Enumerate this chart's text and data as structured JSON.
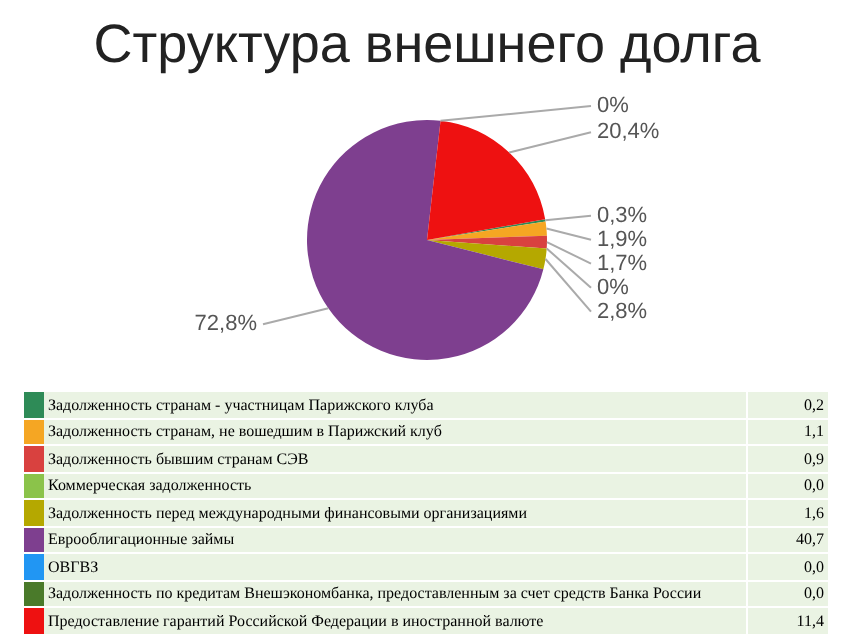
{
  "chart_data": {
    "type": "pie",
    "title": "Структура внешнего долга",
    "categories": [
      "Задолженность странам - участницам Парижского клуба",
      "Задолженность странам, не вошедшим в Парижский клуб",
      "Задолженность бывшим странам СЭВ",
      "Коммерческая задолженность",
      "Задолженность перед международными финансовыми организациями",
      "Еврооблигационные займы",
      "ОВГВЗ",
      "Задолженность по кредитам Внешэкономбанка, предоставленным за счет средств Банка России",
      "Предоставление гарантий Российской Федерации в иностранной валюте"
    ],
    "values": [
      0.3,
      1.9,
      1.7,
      0,
      2.8,
      72.8,
      0,
      0,
      20.4
    ],
    "value_labels": [
      "0,3%",
      "1,9%",
      "1,7%",
      "0%",
      "2,8%",
      "72,8%",
      null,
      "0%",
      "20,4%"
    ],
    "annotations": [
      "0,2",
      "1,1",
      "0,9",
      "0,0",
      "1,6",
      "40,7",
      "0,0",
      "0,0",
      "11,4"
    ],
    "colors": [
      "#2e8b57",
      "#f5a623",
      "#d9413f",
      "#8bc34a",
      "#b5a800",
      "#7e3f8f",
      "#2196f3",
      "#4a7a2a",
      "#ee1111"
    ],
    "legend": "bottom"
  }
}
